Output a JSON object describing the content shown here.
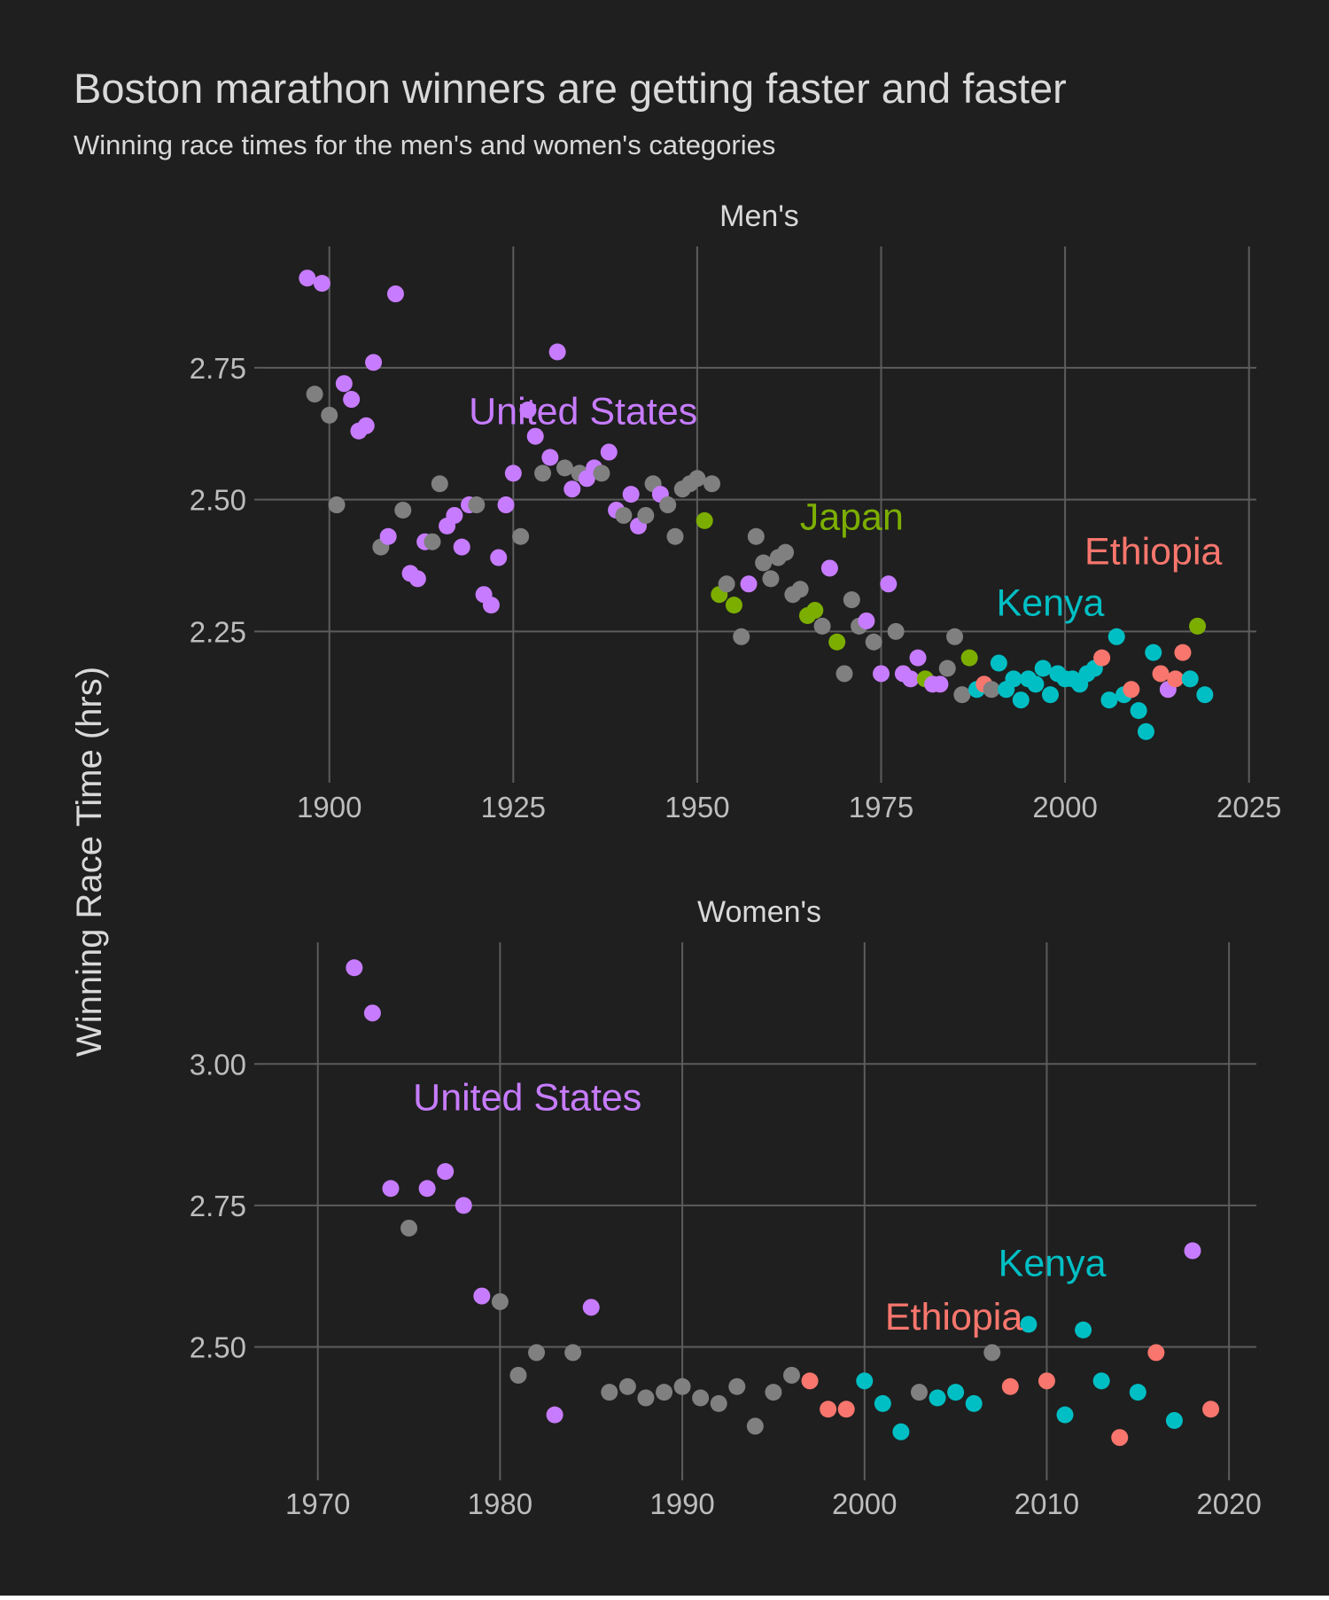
{
  "title": "Boston marathon winners are getting faster and faster",
  "subtitle": "Winning race times for the men's and women's categories",
  "ylabel": "Winning Race Time (hrs)",
  "colors": {
    "background": "#1f1f1f",
    "grid": "#5c5c5c",
    "text": "#d9d9d9",
    "tick_text": "#bdbdbd",
    "other_points": "#808080"
  },
  "countries": {
    "United States": "#c77cff",
    "Japan": "#7cae00",
    "Kenya": "#00bfc4",
    "Ethiopia": "#f8766d",
    "Other": "#808080"
  },
  "chart_data": [
    {
      "type": "scatter",
      "panel_title": "Men's",
      "xlim": [
        1891,
        2026
      ],
      "ylim": [
        1.98,
        2.98
      ],
      "xticks": [
        1900,
        1925,
        1950,
        1975,
        2000,
        2025
      ],
      "yticks": [
        2.25,
        2.5,
        2.75
      ],
      "ytick_labels": [
        "2.25",
        "2.50",
        "2.75"
      ],
      "grid": true,
      "annotations": [
        {
          "text": "United States",
          "x": 1934.5,
          "y": 2.668,
          "country": "United States"
        },
        {
          "text": "Japan",
          "x": 1971,
          "y": 2.468,
          "country": "Japan"
        },
        {
          "text": "Ethiopia",
          "x": 2012,
          "y": 2.403,
          "country": "Ethiopia"
        },
        {
          "text": "Kenya",
          "x": 1998,
          "y": 2.305,
          "country": "Kenya"
        }
      ],
      "points": [
        {
          "x": 1897,
          "y": 2.92,
          "country": "United States"
        },
        {
          "x": 1898,
          "y": 2.7,
          "country": "Other"
        },
        {
          "x": 1899,
          "y": 2.91,
          "country": "United States"
        },
        {
          "x": 1900,
          "y": 2.66,
          "country": "Other"
        },
        {
          "x": 1901,
          "y": 2.49,
          "country": "Other"
        },
        {
          "x": 1902,
          "y": 2.72,
          "country": "United States"
        },
        {
          "x": 1903,
          "y": 2.69,
          "country": "United States"
        },
        {
          "x": 1904,
          "y": 2.63,
          "country": "United States"
        },
        {
          "x": 1905,
          "y": 2.64,
          "country": "United States"
        },
        {
          "x": 1906,
          "y": 2.76,
          "country": "United States"
        },
        {
          "x": 1907,
          "y": 2.41,
          "country": "Other"
        },
        {
          "x": 1908,
          "y": 2.43,
          "country": "United States"
        },
        {
          "x": 1909,
          "y": 2.89,
          "country": "United States"
        },
        {
          "x": 1910,
          "y": 2.48,
          "country": "Other"
        },
        {
          "x": 1911,
          "y": 2.36,
          "country": "United States"
        },
        {
          "x": 1912,
          "y": 2.35,
          "country": "United States"
        },
        {
          "x": 1913,
          "y": 2.42,
          "country": "United States"
        },
        {
          "x": 1914,
          "y": 2.42,
          "country": "Other"
        },
        {
          "x": 1915,
          "y": 2.53,
          "country": "Other"
        },
        {
          "x": 1916,
          "y": 2.45,
          "country": "United States"
        },
        {
          "x": 1917,
          "y": 2.47,
          "country": "United States"
        },
        {
          "x": 1918,
          "y": 2.41,
          "country": "United States"
        },
        {
          "x": 1919,
          "y": 2.49,
          "country": "United States"
        },
        {
          "x": 1920,
          "y": 2.49,
          "country": "Other"
        },
        {
          "x": 1921,
          "y": 2.32,
          "country": "United States"
        },
        {
          "x": 1922,
          "y": 2.3,
          "country": "United States"
        },
        {
          "x": 1923,
          "y": 2.39,
          "country": "United States"
        },
        {
          "x": 1924,
          "y": 2.49,
          "country": "United States"
        },
        {
          "x": 1925,
          "y": 2.55,
          "country": "United States"
        },
        {
          "x": 1926,
          "y": 2.43,
          "country": "Other"
        },
        {
          "x": 1927,
          "y": 2.67,
          "country": "United States"
        },
        {
          "x": 1928,
          "y": 2.62,
          "country": "United States"
        },
        {
          "x": 1929,
          "y": 2.55,
          "country": "Other"
        },
        {
          "x": 1930,
          "y": 2.58,
          "country": "United States"
        },
        {
          "x": 1931,
          "y": 2.78,
          "country": "United States"
        },
        {
          "x": 1932,
          "y": 2.56,
          "country": "Other"
        },
        {
          "x": 1933,
          "y": 2.52,
          "country": "United States"
        },
        {
          "x": 1934,
          "y": 2.55,
          "country": "Other"
        },
        {
          "x": 1935,
          "y": 2.54,
          "country": "United States"
        },
        {
          "x": 1936,
          "y": 2.56,
          "country": "United States"
        },
        {
          "x": 1937,
          "y": 2.55,
          "country": "Other"
        },
        {
          "x": 1938,
          "y": 2.59,
          "country": "United States"
        },
        {
          "x": 1939,
          "y": 2.48,
          "country": "United States"
        },
        {
          "x": 1940,
          "y": 2.47,
          "country": "Other"
        },
        {
          "x": 1941,
          "y": 2.51,
          "country": "United States"
        },
        {
          "x": 1942,
          "y": 2.45,
          "country": "United States"
        },
        {
          "x": 1943,
          "y": 2.47,
          "country": "Other"
        },
        {
          "x": 1944,
          "y": 2.53,
          "country": "Other"
        },
        {
          "x": 1945,
          "y": 2.51,
          "country": "United States"
        },
        {
          "x": 1946,
          "y": 2.49,
          "country": "Other"
        },
        {
          "x": 1947,
          "y": 2.43,
          "country": "Other"
        },
        {
          "x": 1948,
          "y": 2.52,
          "country": "Other"
        },
        {
          "x": 1949,
          "y": 2.53,
          "country": "Other"
        },
        {
          "x": 1950,
          "y": 2.54,
          "country": "Other"
        },
        {
          "x": 1951,
          "y": 2.46,
          "country": "Japan"
        },
        {
          "x": 1952,
          "y": 2.53,
          "country": "Other"
        },
        {
          "x": 1953,
          "y": 2.32,
          "country": "Japan"
        },
        {
          "x": 1954,
          "y": 2.34,
          "country": "Other"
        },
        {
          "x": 1955,
          "y": 2.3,
          "country": "Japan"
        },
        {
          "x": 1956,
          "y": 2.24,
          "country": "Other"
        },
        {
          "x": 1957,
          "y": 2.34,
          "country": "United States"
        },
        {
          "x": 1958,
          "y": 2.43,
          "country": "Other"
        },
        {
          "x": 1959,
          "y": 2.38,
          "country": "Other"
        },
        {
          "x": 1960,
          "y": 2.35,
          "country": "Other"
        },
        {
          "x": 1961,
          "y": 2.39,
          "country": "Other"
        },
        {
          "x": 1962,
          "y": 2.4,
          "country": "Other"
        },
        {
          "x": 1963,
          "y": 2.32,
          "country": "Other"
        },
        {
          "x": 1964,
          "y": 2.33,
          "country": "Other"
        },
        {
          "x": 1965,
          "y": 2.28,
          "country": "Japan"
        },
        {
          "x": 1966,
          "y": 2.29,
          "country": "Japan"
        },
        {
          "x": 1967,
          "y": 2.26,
          "country": "Other"
        },
        {
          "x": 1968,
          "y": 2.37,
          "country": "United States"
        },
        {
          "x": 1969,
          "y": 2.23,
          "country": "Japan"
        },
        {
          "x": 1970,
          "y": 2.17,
          "country": "Other"
        },
        {
          "x": 1971,
          "y": 2.31,
          "country": "Other"
        },
        {
          "x": 1972,
          "y": 2.26,
          "country": "Other"
        },
        {
          "x": 1973,
          "y": 2.27,
          "country": "United States"
        },
        {
          "x": 1974,
          "y": 2.23,
          "country": "Other"
        },
        {
          "x": 1975,
          "y": 2.17,
          "country": "United States"
        },
        {
          "x": 1976,
          "y": 2.34,
          "country": "United States"
        },
        {
          "x": 1977,
          "y": 2.25,
          "country": "Other"
        },
        {
          "x": 1978,
          "y": 2.17,
          "country": "United States"
        },
        {
          "x": 1979,
          "y": 2.16,
          "country": "United States"
        },
        {
          "x": 1980,
          "y": 2.2,
          "country": "United States"
        },
        {
          "x": 1981,
          "y": 2.16,
          "country": "Japan"
        },
        {
          "x": 1982,
          "y": 2.15,
          "country": "United States"
        },
        {
          "x": 1983,
          "y": 2.15,
          "country": "United States"
        },
        {
          "x": 1984,
          "y": 2.18,
          "country": "Other"
        },
        {
          "x": 1985,
          "y": 2.24,
          "country": "Other"
        },
        {
          "x": 1986,
          "y": 2.13,
          "country": "Other"
        },
        {
          "x": 1987,
          "y": 2.2,
          "country": "Japan"
        },
        {
          "x": 1988,
          "y": 2.14,
          "country": "Kenya"
        },
        {
          "x": 1989,
          "y": 2.15,
          "country": "Ethiopia"
        },
        {
          "x": 1990,
          "y": 2.14,
          "country": "Other"
        },
        {
          "x": 1991,
          "y": 2.19,
          "country": "Kenya"
        },
        {
          "x": 1992,
          "y": 2.14,
          "country": "Kenya"
        },
        {
          "x": 1993,
          "y": 2.16,
          "country": "Kenya"
        },
        {
          "x": 1994,
          "y": 2.12,
          "country": "Kenya"
        },
        {
          "x": 1995,
          "y": 2.16,
          "country": "Kenya"
        },
        {
          "x": 1996,
          "y": 2.15,
          "country": "Kenya"
        },
        {
          "x": 1997,
          "y": 2.18,
          "country": "Kenya"
        },
        {
          "x": 1998,
          "y": 2.13,
          "country": "Kenya"
        },
        {
          "x": 1999,
          "y": 2.17,
          "country": "Kenya"
        },
        {
          "x": 2000,
          "y": 2.16,
          "country": "Kenya"
        },
        {
          "x": 2001,
          "y": 2.16,
          "country": "Kenya"
        },
        {
          "x": 2002,
          "y": 2.15,
          "country": "Kenya"
        },
        {
          "x": 2003,
          "y": 2.17,
          "country": "Kenya"
        },
        {
          "x": 2004,
          "y": 2.18,
          "country": "Kenya"
        },
        {
          "x": 2005,
          "y": 2.2,
          "country": "Ethiopia"
        },
        {
          "x": 2006,
          "y": 2.12,
          "country": "Kenya"
        },
        {
          "x": 2007,
          "y": 2.24,
          "country": "Kenya"
        },
        {
          "x": 2008,
          "y": 2.13,
          "country": "Kenya"
        },
        {
          "x": 2009,
          "y": 2.14,
          "country": "Ethiopia"
        },
        {
          "x": 2010,
          "y": 2.1,
          "country": "Kenya"
        },
        {
          "x": 2011,
          "y": 2.06,
          "country": "Kenya"
        },
        {
          "x": 2012,
          "y": 2.21,
          "country": "Kenya"
        },
        {
          "x": 2013,
          "y": 2.17,
          "country": "Ethiopia"
        },
        {
          "x": 2014,
          "y": 2.14,
          "country": "United States"
        },
        {
          "x": 2015,
          "y": 2.16,
          "country": "Ethiopia"
        },
        {
          "x": 2016,
          "y": 2.21,
          "country": "Ethiopia"
        },
        {
          "x": 2017,
          "y": 2.16,
          "country": "Kenya"
        },
        {
          "x": 2018,
          "y": 2.26,
          "country": "Japan"
        },
        {
          "x": 2019,
          "y": 2.13,
          "country": "Kenya"
        }
      ]
    },
    {
      "type": "scatter",
      "panel_title": "Women's",
      "xlim": [
        1967,
        2021.5
      ],
      "ylim": [
        2.28,
        3.215
      ],
      "xticks": [
        1970,
        1980,
        1990,
        2000,
        2010,
        2020
      ],
      "yticks": [
        2.5,
        2.75,
        3.0
      ],
      "ytick_labels": [
        "2.50",
        "2.75",
        "3.00"
      ],
      "grid": true,
      "annotations": [
        {
          "text": "United States",
          "x": 1981.5,
          "y": 2.942,
          "country": "United States"
        },
        {
          "text": "Kenya",
          "x": 2010.3,
          "y": 2.649,
          "country": "Kenya"
        },
        {
          "text": "Ethiopia",
          "x": 2004.9,
          "y": 2.554,
          "country": "Ethiopia"
        }
      ],
      "points": [
        {
          "x": 1972,
          "y": 3.17,
          "country": "United States"
        },
        {
          "x": 1973,
          "y": 3.09,
          "country": "United States"
        },
        {
          "x": 1974,
          "y": 2.78,
          "country": "United States"
        },
        {
          "x": 1975,
          "y": 2.71,
          "country": "Other"
        },
        {
          "x": 1976,
          "y": 2.78,
          "country": "United States"
        },
        {
          "x": 1977,
          "y": 2.81,
          "country": "United States"
        },
        {
          "x": 1978,
          "y": 2.75,
          "country": "United States"
        },
        {
          "x": 1979,
          "y": 2.59,
          "country": "United States"
        },
        {
          "x": 1980,
          "y": 2.58,
          "country": "Other"
        },
        {
          "x": 1981,
          "y": 2.45,
          "country": "Other"
        },
        {
          "x": 1982,
          "y": 2.49,
          "country": "Other"
        },
        {
          "x": 1983,
          "y": 2.38,
          "country": "United States"
        },
        {
          "x": 1984,
          "y": 2.49,
          "country": "Other"
        },
        {
          "x": 1985,
          "y": 2.57,
          "country": "United States"
        },
        {
          "x": 1986,
          "y": 2.42,
          "country": "Other"
        },
        {
          "x": 1987,
          "y": 2.43,
          "country": "Other"
        },
        {
          "x": 1988,
          "y": 2.41,
          "country": "Other"
        },
        {
          "x": 1989,
          "y": 2.42,
          "country": "Other"
        },
        {
          "x": 1990,
          "y": 2.43,
          "country": "Other"
        },
        {
          "x": 1991,
          "y": 2.41,
          "country": "Other"
        },
        {
          "x": 1992,
          "y": 2.4,
          "country": "Other"
        },
        {
          "x": 1993,
          "y": 2.43,
          "country": "Other"
        },
        {
          "x": 1994,
          "y": 2.36,
          "country": "Other"
        },
        {
          "x": 1995,
          "y": 2.42,
          "country": "Other"
        },
        {
          "x": 1996,
          "y": 2.45,
          "country": "Other"
        },
        {
          "x": 1997,
          "y": 2.44,
          "country": "Ethiopia"
        },
        {
          "x": 1998,
          "y": 2.39,
          "country": "Ethiopia"
        },
        {
          "x": 1999,
          "y": 2.39,
          "country": "Ethiopia"
        },
        {
          "x": 2000,
          "y": 2.44,
          "country": "Kenya"
        },
        {
          "x": 2001,
          "y": 2.4,
          "country": "Kenya"
        },
        {
          "x": 2002,
          "y": 2.35,
          "country": "Kenya"
        },
        {
          "x": 2003,
          "y": 2.42,
          "country": "Other"
        },
        {
          "x": 2004,
          "y": 2.41,
          "country": "Kenya"
        },
        {
          "x": 2005,
          "y": 2.42,
          "country": "Kenya"
        },
        {
          "x": 2006,
          "y": 2.4,
          "country": "Kenya"
        },
        {
          "x": 2007,
          "y": 2.49,
          "country": "Other"
        },
        {
          "x": 2008,
          "y": 2.43,
          "country": "Ethiopia"
        },
        {
          "x": 2009,
          "y": 2.54,
          "country": "Kenya"
        },
        {
          "x": 2010,
          "y": 2.44,
          "country": "Ethiopia"
        },
        {
          "x": 2011,
          "y": 2.38,
          "country": "Kenya"
        },
        {
          "x": 2012,
          "y": 2.53,
          "country": "Kenya"
        },
        {
          "x": 2013,
          "y": 2.44,
          "country": "Kenya"
        },
        {
          "x": 2014,
          "y": 2.34,
          "country": "Ethiopia"
        },
        {
          "x": 2015,
          "y": 2.42,
          "country": "Kenya"
        },
        {
          "x": 2016,
          "y": 2.49,
          "country": "Ethiopia"
        },
        {
          "x": 2017,
          "y": 2.37,
          "country": "Kenya"
        },
        {
          "x": 2018,
          "y": 2.67,
          "country": "United States"
        },
        {
          "x": 2019,
          "y": 2.39,
          "country": "Ethiopia"
        }
      ]
    }
  ]
}
